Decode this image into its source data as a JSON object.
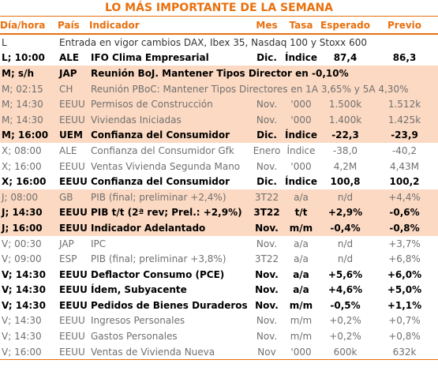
{
  "header": {
    "title": "LO MÁS IMPORTANTE DE LA SEMANA"
  },
  "table": {
    "columns": [
      "Día/hora",
      "País",
      "Indicador",
      "Mes",
      "Tasa",
      "Esperado",
      "Previo"
    ],
    "rows": [
      [
        "L",
        "Entrada en vigor cambios DAX, Ibex 35, Nasdaq 100 y Stoxx 600"
      ],
      [
        "L; 10:00",
        "ALE",
        "IFO Clima Empresarial",
        "Dic.",
        "Índice",
        "87,4",
        "86,3"
      ],
      [
        "M; s/h",
        "JAP",
        "Reunión BoJ. Mantener Tipos Director en -0,10%"
      ],
      [
        "M; 02:15",
        "CH",
        "Reunión PBoC: Mantener Tipos Directores en 1A 3,65% y 5A 4,30%"
      ],
      [
        "M; 14:30",
        "EEUU",
        "Permisos de Construcción",
        "Nov.",
        "'000",
        "1.500k",
        "1.512k"
      ],
      [
        "M; 14:30",
        "EEUU",
        "Viviendas Iniciadas",
        "Nov.",
        "'000",
        "1.400k",
        "1.425k"
      ],
      [
        "M; 16:00",
        "UEM",
        "Confianza del Consumidor",
        "Dic.",
        "Índice",
        "-22,3",
        "-23,9"
      ],
      [
        "X; 08:00",
        "ALE",
        "Confianza del Consumidor Gfk",
        "Enero",
        "Índice",
        "-38,0",
        "-40,2"
      ],
      [
        "X; 16:00",
        "EEUU",
        "Ventas Vivienda Segunda Mano",
        "Nov.",
        "'000",
        "4,2M",
        "4,43M"
      ],
      [
        "X; 16:00",
        "EEUU",
        "Confianza del Consumidor",
        "Dic.",
        "Índice",
        "100,8",
        "100,2"
      ],
      [
        "J; 08:00",
        "GB",
        "PIB (final; preliminar +2,4%)",
        "3T22",
        "a/a",
        "n/d",
        "+4,4%"
      ],
      [
        "J; 14:30",
        "EEUU",
        "PIB t/t (2ª rev; Prel.: +2,9%)",
        "3T22",
        "t/t",
        "+2,9%",
        "-0,6%"
      ],
      [
        "J; 16:00",
        "EEUU",
        "Indicador Adelantado",
        "Nov.",
        "m/m",
        "-0,4%",
        "-0,8%"
      ],
      [
        "V; 00:30",
        "JAP",
        "IPC",
        "Nov.",
        "a/a",
        "n/d",
        "+3,7%"
      ],
      [
        "V; 09:00",
        "ESP",
        "PIB (final; preliminar +3,8%)",
        "3T22",
        "a/a",
        "n/d",
        "+6,8%"
      ],
      [
        "V; 14:30",
        "EEUU",
        "Deflactor Consumo (PCE)",
        "Nov.",
        "a/a",
        "+5,6%",
        "+6,0%"
      ],
      [
        "V; 14:30",
        "EEUU",
        "Ídem, Subyacente",
        "Nov.",
        "a/a",
        "+4,6%",
        "+5,0%"
      ],
      [
        "V; 14:30",
        "EEUU",
        "Pedidos de Bienes Duraderos",
        "Nov.",
        "m/m",
        "-0,5%",
        "+1,1%"
      ],
      [
        "V; 14:30",
        "EEUU",
        "Ingresos Personales",
        "Nov.",
        "m/m",
        "+0,2%",
        "+0,7%"
      ],
      [
        "V; 14:30",
        "EEUU",
        "Gastos Personales",
        "Nov.",
        "m/m",
        "+0,2%",
        "+0,8%"
      ],
      [
        "V; 16:00",
        "EEUU",
        "Ventas de Vivienda Nueva",
        "Nov",
        "'000",
        "600k",
        "632k"
      ]
    ]
  }
}
